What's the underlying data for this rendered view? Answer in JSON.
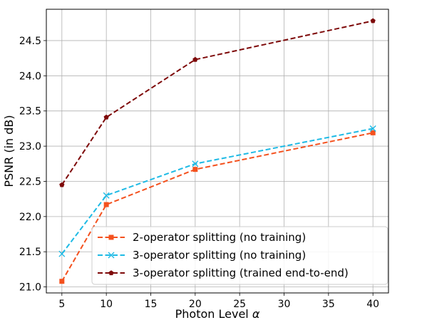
{
  "chart_data": {
    "type": "line",
    "xlabel_text": "Photon Level ",
    "xlabel_symbol": "α",
    "ylabel": "PSNR (in dB)",
    "x": [
      5,
      10,
      20,
      40
    ],
    "xlim": [
      3.25,
      41.75
    ],
    "ylim": [
      20.915,
      24.945
    ],
    "xticks": [
      5,
      10,
      15,
      20,
      25,
      30,
      35,
      40
    ],
    "yticks": [
      "21.0",
      "21.5",
      "22.0",
      "22.5",
      "23.0",
      "23.5",
      "24.0",
      "24.5"
    ],
    "grid": true,
    "legend_position": "lower-right",
    "series": [
      {
        "name": "2-operator splitting (no training)",
        "values": [
          21.08,
          22.17,
          22.67,
          23.19
        ],
        "color": "#f4511e",
        "marker": "square",
        "line_style": "dashed"
      },
      {
        "name": "3-operator splitting (no training)",
        "values": [
          21.47,
          22.3,
          22.75,
          23.25
        ],
        "color": "#1ebae5",
        "marker": "x",
        "line_style": "dashed"
      },
      {
        "name": "3-operator splitting (trained end-to-end)",
        "values": [
          22.45,
          23.41,
          24.23,
          24.78
        ],
        "color": "#7e0a0a",
        "marker": "pentagon",
        "line_style": "dashed"
      }
    ]
  }
}
